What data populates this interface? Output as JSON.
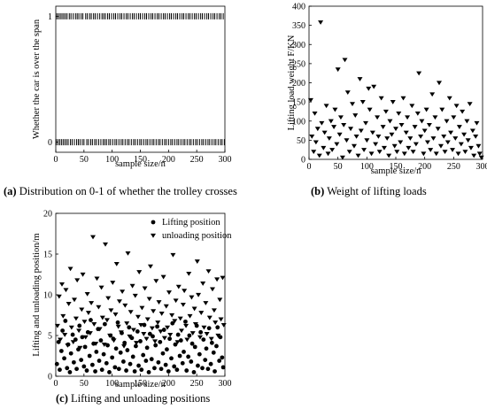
{
  "chart_data": [
    {
      "type": "scatter",
      "caption_id": "(a)",
      "caption_text": "Distribution on 0-1 of whether the trolley crosses",
      "xlabel": "sample size/n",
      "ylabel": "Whether the car is over the span",
      "xlim": [
        0,
        300
      ],
      "ylim": [
        -0.08,
        1.08
      ],
      "x_ticks": [
        "0",
        "50",
        "100",
        "150",
        "200",
        "250",
        "300"
      ],
      "y_ticks": [
        "0",
        "1"
      ],
      "marker": "vertical-tick",
      "series": [
        {
          "x": [
            2,
            5,
            8,
            11,
            14,
            17,
            20,
            24,
            27,
            31,
            35,
            38,
            41,
            45,
            48,
            53,
            56,
            60,
            63,
            67,
            70,
            74,
            78,
            82,
            85,
            88,
            92,
            95,
            99,
            103,
            106,
            110,
            114,
            117,
            121,
            125,
            128,
            132,
            136,
            139,
            143,
            147,
            150,
            154,
            158,
            161,
            165,
            169,
            172,
            176,
            180,
            183,
            187,
            191,
            194,
            198,
            202,
            205,
            209,
            213,
            216,
            220,
            224,
            227,
            231,
            235,
            238,
            242,
            246,
            249,
            253,
            257,
            260,
            264,
            268,
            271,
            275,
            279,
            282,
            286,
            290,
            293,
            297
          ],
          "y": [
            1,
            1,
            1,
            1,
            1,
            1,
            1,
            1,
            1,
            1,
            1,
            1,
            1,
            1,
            1,
            1,
            1,
            1,
            1,
            1,
            1,
            1,
            1,
            1,
            1,
            1,
            1,
            1,
            1,
            1,
            1,
            1,
            1,
            1,
            1,
            1,
            1,
            1,
            1,
            1,
            1,
            1,
            1,
            1,
            1,
            1,
            1,
            1,
            1,
            1,
            1,
            1,
            1,
            1,
            1,
            1,
            1,
            1,
            1,
            1,
            1,
            1,
            1,
            1,
            1,
            1,
            1,
            1,
            1,
            1,
            1,
            1,
            1,
            1,
            1,
            1,
            1,
            1,
            1,
            1,
            1,
            1,
            1
          ]
        },
        {
          "x": [
            1,
            4,
            7,
            10,
            13,
            16,
            19,
            22,
            26,
            29,
            33,
            37,
            40,
            43,
            47,
            50,
            55,
            58,
            62,
            65,
            69,
            72,
            76,
            80,
            84,
            87,
            90,
            94,
            97,
            101,
            105,
            108,
            112,
            116,
            119,
            123,
            127,
            130,
            134,
            138,
            141,
            145,
            149,
            152,
            156,
            160,
            163,
            167,
            171,
            174,
            178,
            182,
            185,
            189,
            193,
            196,
            200,
            204,
            207,
            211,
            215,
            218,
            222,
            226,
            229,
            233,
            237,
            240,
            244,
            248,
            251,
            255,
            259,
            262,
            266,
            270,
            273,
            277,
            281,
            284,
            288,
            292,
            295,
            299
          ],
          "y": [
            0,
            0,
            0,
            0,
            0,
            0,
            0,
            0,
            0,
            0,
            0,
            0,
            0,
            0,
            0,
            0,
            0,
            0,
            0,
            0,
            0,
            0,
            0,
            0,
            0,
            0,
            0,
            0,
            0,
            0,
            0,
            0,
            0,
            0,
            0,
            0,
            0,
            0,
            0,
            0,
            0,
            0,
            0,
            0,
            0,
            0,
            0,
            0,
            0,
            0,
            0,
            0,
            0,
            0,
            0,
            0,
            0,
            0,
            0,
            0,
            0,
            0,
            0,
            0,
            0,
            0,
            0,
            0,
            0,
            0,
            0,
            0,
            0,
            0,
            0,
            0,
            0,
            0,
            0,
            0,
            0,
            0,
            0,
            0
          ]
        }
      ]
    },
    {
      "type": "scatter",
      "caption_id": "(b)",
      "caption_text": "Weight of lifting loads",
      "xlabel": "sample size/n",
      "ylabel": "Lifting load weight F/KN",
      "xlim": [
        0,
        300
      ],
      "ylim": [
        0,
        400
      ],
      "x_ticks": [
        "0",
        "50",
        "100",
        "150",
        "200",
        "250",
        "300"
      ],
      "y_ticks": [
        "0",
        "50",
        "100",
        "150",
        "200",
        "250",
        "300",
        "350",
        "400"
      ],
      "marker": "triangle-down",
      "series": [
        {
          "x": [
            3,
            5,
            8,
            10,
            12,
            15,
            18,
            20,
            22,
            25,
            27,
            30,
            33,
            35,
            38,
            40,
            43,
            45,
            48,
            50,
            53,
            55,
            58,
            60,
            62,
            65,
            67,
            70,
            72,
            75,
            78,
            80,
            82,
            85,
            88,
            90,
            93,
            95,
            98,
            100,
            103,
            105,
            108,
            110,
            112,
            115,
            118,
            120,
            122,
            125,
            128,
            130,
            133,
            135,
            138,
            140,
            143,
            145,
            148,
            150,
            152,
            155,
            158,
            160,
            163,
            165,
            168,
            170,
            172,
            175,
            178,
            180,
            183,
            185,
            188,
            190,
            193,
            195,
            198,
            200,
            203,
            205,
            208,
            210,
            213,
            215,
            218,
            220,
            223,
            225,
            228,
            230,
            233,
            235,
            238,
            240,
            243,
            245,
            248,
            250,
            253,
            255,
            258,
            260,
            263,
            265,
            268,
            270,
            273,
            275,
            278,
            280,
            283,
            285,
            288,
            290,
            293,
            295,
            298
          ],
          "y": [
            155,
            60,
            20,
            120,
            45,
            80,
            10,
            358,
            95,
            30,
            70,
            140,
            15,
            55,
            100,
            25,
            85,
            130,
            40,
            235,
            65,
            110,
            5,
            90,
            260,
            50,
            175,
            20,
            80,
            145,
            35,
            115,
            60,
            10,
            210,
            75,
            150,
            25,
            95,
            50,
            185,
            130,
            15,
            70,
            190,
            40,
            110,
            60,
            20,
            160,
            85,
            30,
            125,
            55,
            10,
            100,
            65,
            150,
            35,
            80,
            20,
            120,
            45,
            90,
            160,
            15,
            70,
            110,
            30,
            55,
            140,
            20,
            85,
            40,
            120,
            225,
            60,
            100,
            15,
            75,
            130,
            45,
            90,
            25,
            170,
            55,
            110,
            15,
            80,
            200,
            35,
            130,
            60,
            20,
            100,
            45,
            160,
            70,
            25,
            110,
            55,
            140,
            15,
            85,
            40,
            125,
            65,
            20,
            100,
            50,
            145,
            30,
            75,
            10,
            60,
            95,
            35,
            15,
            5
          ]
        }
      ]
    },
    {
      "type": "scatter",
      "caption_id": "(c)",
      "caption_text": "Lifting and unloading positions",
      "xlabel": "sample size/n",
      "ylabel": "Lifting and unloading position/m",
      "xlim": [
        0,
        300
      ],
      "ylim": [
        0,
        20
      ],
      "x_ticks": [
        "0",
        "50",
        "100",
        "150",
        "200",
        "250",
        "300"
      ],
      "y_ticks": [
        "0",
        "5",
        "10",
        "15",
        "20"
      ],
      "legend_position": "top",
      "series": [
        {
          "name": "Lifting position",
          "marker": "circle",
          "x": [
            2,
            5,
            7,
            10,
            12,
            15,
            17,
            20,
            22,
            25,
            27,
            30,
            32,
            35,
            37,
            40,
            42,
            45,
            47,
            50,
            52,
            55,
            57,
            60,
            62,
            65,
            67,
            70,
            72,
            75,
            77,
            80,
            82,
            85,
            87,
            90,
            92,
            95,
            97,
            100,
            102,
            105,
            107,
            110,
            112,
            115,
            117,
            120,
            122,
            125,
            127,
            130,
            132,
            135,
            137,
            140,
            142,
            145,
            147,
            150,
            152,
            155,
            157,
            160,
            162,
            165,
            167,
            170,
            172,
            175,
            177,
            180,
            182,
            185,
            187,
            190,
            192,
            195,
            197,
            200,
            202,
            205,
            207,
            210,
            212,
            215,
            217,
            220,
            222,
            225,
            227,
            230,
            232,
            235,
            237,
            240,
            242,
            245,
            247,
            250,
            252,
            255,
            257,
            260,
            262,
            265,
            267,
            270,
            272,
            275,
            277,
            280,
            282,
            285,
            287,
            290,
            292,
            295,
            297
          ],
          "y": [
            1.5,
            4.2,
            0.8,
            3.1,
            5.6,
            2.2,
            6.8,
            1.0,
            3.9,
            0.5,
            2.8,
            5.1,
            1.7,
            4.5,
            0.9,
            3.3,
            6.2,
            2.0,
            4.8,
            1.2,
            3.6,
            0.7,
            5.4,
            2.5,
            6.9,
            1.4,
            4.0,
            0.6,
            3.0,
            5.8,
            1.9,
            4.4,
            0.8,
            2.7,
            6.4,
            1.6,
            3.8,
            0.5,
            5.0,
            2.3,
            4.6,
            1.1,
            3.4,
            6.6,
            0.9,
            2.9,
            5.3,
            1.8,
            4.1,
            0.7,
            3.2,
            6.0,
            1.5,
            4.7,
            2.4,
            0.6,
            3.7,
            5.5,
            1.3,
            4.3,
            0.8,
            2.6,
            6.3,
            1.9,
            3.5,
            0.5,
            5.2,
            2.1,
            4.9,
            1.0,
            3.8,
            6.1,
            1.7,
            4.2,
            0.9,
            2.8,
            5.7,
            1.4,
            3.3,
            0.6,
            4.6,
            2.2,
            6.5,
            1.2,
            3.9,
            0.8,
            5.1,
            2.5,
            4.4,
            1.6,
            3.0,
            6.7,
            0.7,
            2.4,
            5.0,
            1.8,
            4.0,
            0.5,
            3.6,
            6.2,
            1.3,
            2.7,
            5.4,
            1.0,
            4.5,
            2.0,
            3.4,
            0.9,
            5.9,
            1.5,
            4.1,
            2.9,
            0.6,
            3.7,
            6.0,
            1.9,
            4.8,
            2.3,
            1.1
          ]
        },
        {
          "name": "unloading position",
          "marker": "triangle-down",
          "x": [
            3,
            6,
            8,
            11,
            13,
            16,
            18,
            21,
            23,
            26,
            28,
            31,
            33,
            36,
            38,
            41,
            43,
            46,
            48,
            51,
            53,
            56,
            58,
            61,
            63,
            66,
            68,
            71,
            73,
            76,
            78,
            81,
            83,
            86,
            88,
            91,
            93,
            96,
            98,
            101,
            103,
            106,
            108,
            111,
            113,
            116,
            118,
            121,
            123,
            126,
            128,
            131,
            133,
            136,
            138,
            141,
            143,
            146,
            148,
            151,
            153,
            156,
            158,
            161,
            163,
            166,
            168,
            171,
            173,
            176,
            178,
            181,
            183,
            186,
            188,
            191,
            193,
            196,
            198,
            201,
            203,
            206,
            208,
            211,
            213,
            216,
            218,
            221,
            223,
            226,
            228,
            231,
            233,
            236,
            238,
            241,
            243,
            246,
            248,
            251,
            253,
            256,
            258,
            261,
            263,
            266,
            268,
            271,
            273,
            276,
            278,
            281,
            283,
            286,
            288,
            291,
            293,
            296,
            298
          ],
          "y": [
            6.2,
            9.8,
            4.5,
            11.3,
            7.4,
            5.1,
            10.6,
            3.8,
            8.9,
            13.2,
            6.0,
            4.2,
            9.4,
            7.1,
            11.8,
            5.6,
            3.5,
            8.2,
            12.5,
            6.7,
            4.8,
            10.1,
            7.8,
            5.3,
            9.0,
            17.1,
            6.4,
            4.0,
            12.0,
            8.5,
            5.8,
            10.9,
            7.2,
            3.9,
            16.2,
            6.9,
            9.6,
            5.0,
            8.1,
            11.5,
            4.4,
            7.6,
            13.8,
            6.1,
            9.2,
            5.4,
            10.4,
            3.7,
            8.7,
            6.5,
            15.1,
            4.9,
            7.9,
            11.1,
            5.7,
            9.9,
            4.1,
            7.3,
            12.8,
            6.3,
            8.4,
            5.2,
            10.8,
            4.6,
            7.0,
            9.5,
            13.5,
            5.9,
            8.0,
            4.3,
            11.7,
            6.6,
            9.1,
            5.5,
            7.7,
            12.2,
            4.7,
            8.6,
            6.0,
            10.3,
            5.1,
            7.5,
            14.9,
            6.8,
            9.3,
            4.2,
            11.0,
            7.1,
            5.6,
            8.8,
            10.5,
            6.2,
            4.5,
            12.6,
            7.4,
            9.7,
            5.3,
            8.3,
            6.4,
            14.1,
            10.0,
            4.8,
            7.8,
            11.4,
            6.0,
            9.0,
            5.2,
            12.9,
            7.2,
            4.6,
            10.7,
            8.1,
            6.6,
            11.9,
            5.0,
            9.4,
            7.0,
            12.1,
            6.3
          ]
        }
      ]
    }
  ]
}
